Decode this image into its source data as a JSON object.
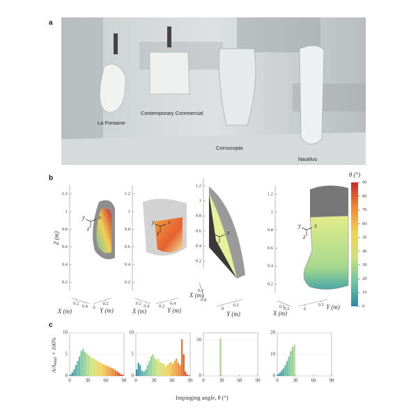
{
  "panel_a": {
    "label": "a",
    "captions": [
      "La Fontaine",
      "Contemporary Commercial",
      "Cornucopia",
      "Nautilus"
    ]
  },
  "panel_b": {
    "label": "b",
    "frame_labels": {
      "x": "x",
      "y": "y",
      "z": "z"
    },
    "plots": [
      {
        "z_label": "Z (m)",
        "zlim": [
          0.1,
          1.3
        ],
        "zticks": [
          0.2,
          0.4,
          0.6,
          0.8,
          1,
          1.2
        ],
        "x_label": "X (m)",
        "xlim": [
          0.1,
          0.5
        ],
        "xticks": [
          0.2,
          0.4
        ],
        "y_label": "Y (m)",
        "ylim": [
          0,
          0.3
        ],
        "yticks": [
          0,
          0.2
        ]
      },
      {
        "zlim": [
          0.1,
          1.3
        ],
        "zticks": [
          0.2,
          0.4,
          0.6,
          0.8,
          1,
          1.2
        ],
        "x_label": "X (m)",
        "xlim": [
          0.1,
          0.5
        ],
        "xticks": [
          0.2,
          0.4
        ],
        "y_label": "Y (m)",
        "ylim": [
          0.1,
          0.5
        ],
        "yticks": [
          0.2,
          0.4
        ]
      },
      {
        "zlim": [
          0.1,
          1.3
        ],
        "zticks": [
          0.2,
          0.4,
          0.6,
          0.8,
          1,
          1.2
        ],
        "x_label": "X (m)",
        "xlim": [
          0.1,
          0.5
        ],
        "xticks": [
          0.2,
          0.4
        ],
        "y_label": "Y (m)",
        "ylim": [
          -0.1,
          0.3
        ],
        "yticks": [
          0,
          0.2
        ]
      },
      {
        "zlim": [
          0.1,
          1.3
        ],
        "zticks": [
          0.2,
          0.4,
          0.6,
          0.8,
          1,
          1.2
        ],
        "x_label": "X (m)",
        "xlim": [
          0,
          0.3
        ],
        "xticks": [
          0.1,
          0.2
        ],
        "y_label": "Y (m)",
        "ylim": [
          -0.2,
          0.7
        ],
        "yticks": [
          0,
          0.5
        ]
      }
    ],
    "colorbar": {
      "title": "θ (°)",
      "lim": [
        0,
        90
      ],
      "ticks": [
        0,
        10,
        20,
        30,
        40,
        50,
        60,
        70,
        80,
        90
      ],
      "colors": [
        "#2b8ca8",
        "#72c3a2",
        "#cfe37c",
        "#f2cf55",
        "#ec8a35",
        "#c62a2c"
      ]
    }
  },
  "panel_c": {
    "label": "c",
    "y_label": {
      "main": "A/A",
      "sub": "total",
      "rest": " × 100%"
    },
    "x_label": "Impinging angle, θ (°)",
    "charts": [
      {
        "type": "histogram",
        "xlim": [
          0,
          90
        ],
        "xticks": [
          0,
          30,
          60,
          90
        ],
        "ylim": [
          0,
          10
        ],
        "yticks": [
          0,
          5,
          10
        ],
        "bins": [
          0,
          3,
          6,
          9,
          12,
          15,
          18,
          21,
          24,
          27,
          30,
          33,
          36,
          39,
          42,
          45,
          48,
          51,
          54,
          57,
          60,
          63,
          66,
          69,
          72,
          75,
          78,
          81,
          84,
          87,
          90
        ],
        "values": [
          0.3,
          0.8,
          1.5,
          2.5,
          3.5,
          4.5,
          5.8,
          6.3,
          5.6,
          5.2,
          4.8,
          4.5,
          4.2,
          4.0,
          3.8,
          3.5,
          3.2,
          3.0,
          2.8,
          2.6,
          2.4,
          2.2,
          2.0,
          1.8,
          1.6,
          1.3,
          1.0,
          0.7,
          0.4,
          0.2
        ]
      },
      {
        "type": "histogram",
        "xlim": [
          0,
          90
        ],
        "xticks": [
          0,
          30,
          60,
          90
        ],
        "ylim": [
          0,
          10
        ],
        "yticks": [
          0,
          5,
          10
        ],
        "bins": [
          0,
          3,
          6,
          9,
          12,
          15,
          18,
          21,
          24,
          27,
          30,
          33,
          36,
          39,
          42,
          45,
          48,
          51,
          54,
          57,
          60,
          63,
          66,
          69,
          72,
          75,
          78,
          81,
          84,
          87,
          90
        ],
        "values": [
          1.5,
          3.0,
          2.5,
          1.2,
          1.0,
          1.5,
          2.5,
          3.5,
          4.5,
          5.0,
          4.2,
          3.8,
          4.0,
          3.2,
          3.0,
          2.8,
          2.2,
          2.6,
          3.0,
          3.2,
          2.8,
          3.5,
          4.0,
          3.0,
          2.5,
          8.5,
          5.0,
          1.0,
          0.3,
          0.1
        ]
      },
      {
        "type": "histogram",
        "xlim": [
          0,
          90
        ],
        "xticks": [
          0,
          30,
          60,
          90
        ],
        "ylim": [
          0,
          60
        ],
        "yticks": [
          0,
          50
        ],
        "bins": [
          0,
          3,
          6,
          9,
          12,
          15,
          18,
          21,
          24,
          27,
          30,
          33,
          36,
          39,
          42,
          45,
          48,
          51,
          54,
          57,
          60,
          63,
          66,
          69,
          72,
          75,
          78,
          81,
          84,
          87,
          90
        ],
        "values": [
          0,
          0,
          0,
          0,
          0,
          0,
          0,
          0,
          0,
          52,
          0,
          0,
          0,
          0,
          0,
          0,
          0,
          0,
          0,
          0,
          0,
          0,
          0,
          0,
          0,
          0,
          0,
          0,
          0,
          0
        ]
      },
      {
        "type": "histogram",
        "xlim": [
          0,
          90
        ],
        "xticks": [
          0,
          30,
          60,
          90
        ],
        "ylim": [
          0,
          20
        ],
        "yticks": [
          0,
          10,
          20
        ],
        "bins": [
          0,
          3,
          6,
          9,
          12,
          15,
          18,
          21,
          24,
          27,
          30,
          33,
          36,
          39,
          42,
          45,
          48,
          51,
          54,
          57,
          60,
          63,
          66,
          69,
          72,
          75,
          78,
          81,
          84,
          87,
          90
        ],
        "values": [
          0.8,
          1.5,
          2.5,
          3.5,
          5,
          7,
          9,
          11.5,
          13.5,
          14.5,
          0,
          0,
          0,
          0,
          0,
          0,
          0,
          0,
          0,
          0,
          0,
          0,
          0,
          0,
          0,
          0,
          0,
          0,
          0,
          0
        ]
      }
    ]
  }
}
